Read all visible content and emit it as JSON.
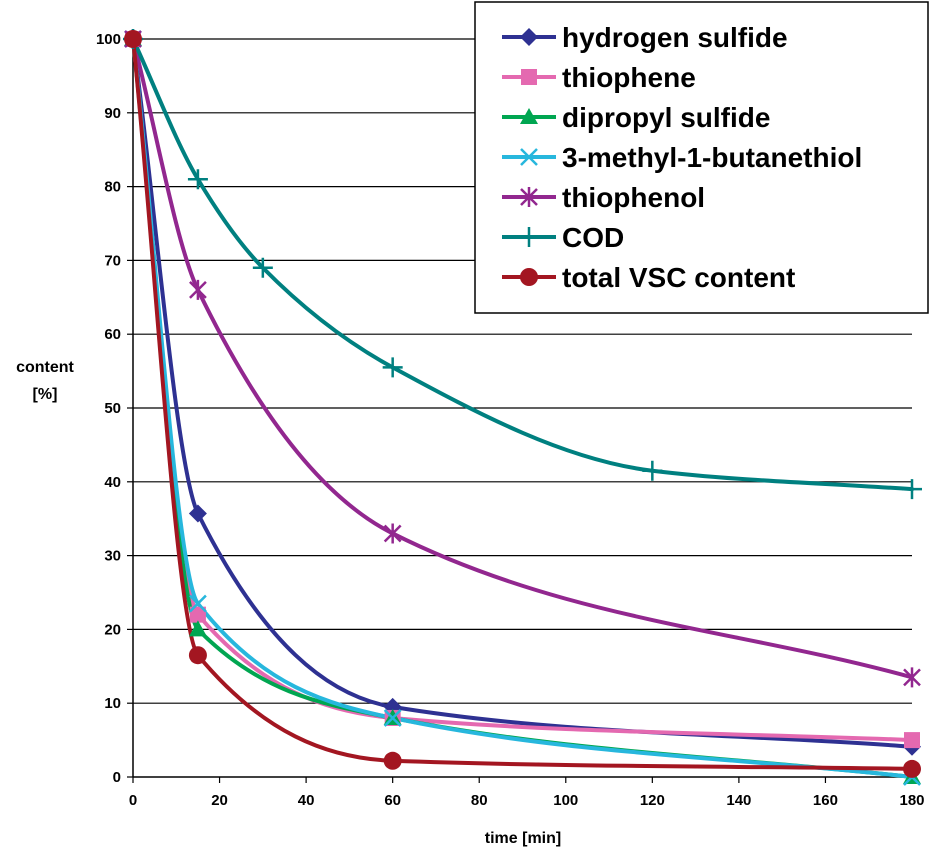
{
  "chart_data": {
    "type": "line",
    "title": "",
    "xlabel": "time [min]",
    "ylabel": [
      "content",
      "[%]"
    ],
    "xlim": [
      0,
      180
    ],
    "ylim": [
      0,
      100
    ],
    "xticks": [
      0,
      20,
      40,
      60,
      80,
      100,
      120,
      140,
      160,
      180
    ],
    "yticks": [
      0,
      10,
      20,
      30,
      40,
      50,
      60,
      70,
      80,
      90,
      100
    ],
    "grid": "horizontal",
    "legend_position": "top-right",
    "series": [
      {
        "name": "hydrogen sulfide",
        "color": "#2E3192",
        "marker": "diamond",
        "x": [
          0,
          15,
          60,
          180
        ],
        "y": [
          100,
          35.7,
          9.5,
          4.1
        ]
      },
      {
        "name": "thiophene",
        "color": "#E469B0",
        "marker": "square",
        "x": [
          0,
          15,
          60,
          180
        ],
        "y": [
          100,
          22,
          8,
          5
        ]
      },
      {
        "name": "dipropyl sulfide",
        "color": "#00A651",
        "marker": "triangle",
        "x": [
          0,
          15,
          60,
          180
        ],
        "y": [
          100,
          20,
          8,
          0
        ]
      },
      {
        "name": "3-methyl-1-butanethiol",
        "color": "#27B7DD",
        "marker": "x",
        "x": [
          0,
          15,
          60,
          180
        ],
        "y": [
          100,
          23.5,
          8,
          0
        ]
      },
      {
        "name": "thiophenol",
        "color": "#92278F",
        "marker": "star",
        "x": [
          0,
          15,
          60,
          180
        ],
        "y": [
          100,
          66,
          33,
          13.5
        ]
      },
      {
        "name": "COD",
        "color": "#008080",
        "marker": "plus",
        "x": [
          0,
          15,
          30,
          60,
          120,
          180
        ],
        "y": [
          100,
          81,
          69,
          55.5,
          41.5,
          39
        ]
      },
      {
        "name": "total VSC content",
        "color": "#A31621",
        "marker": "circle",
        "x": [
          0,
          15,
          60,
          180
        ],
        "y": [
          100,
          16.5,
          2.2,
          1.1
        ]
      }
    ]
  }
}
